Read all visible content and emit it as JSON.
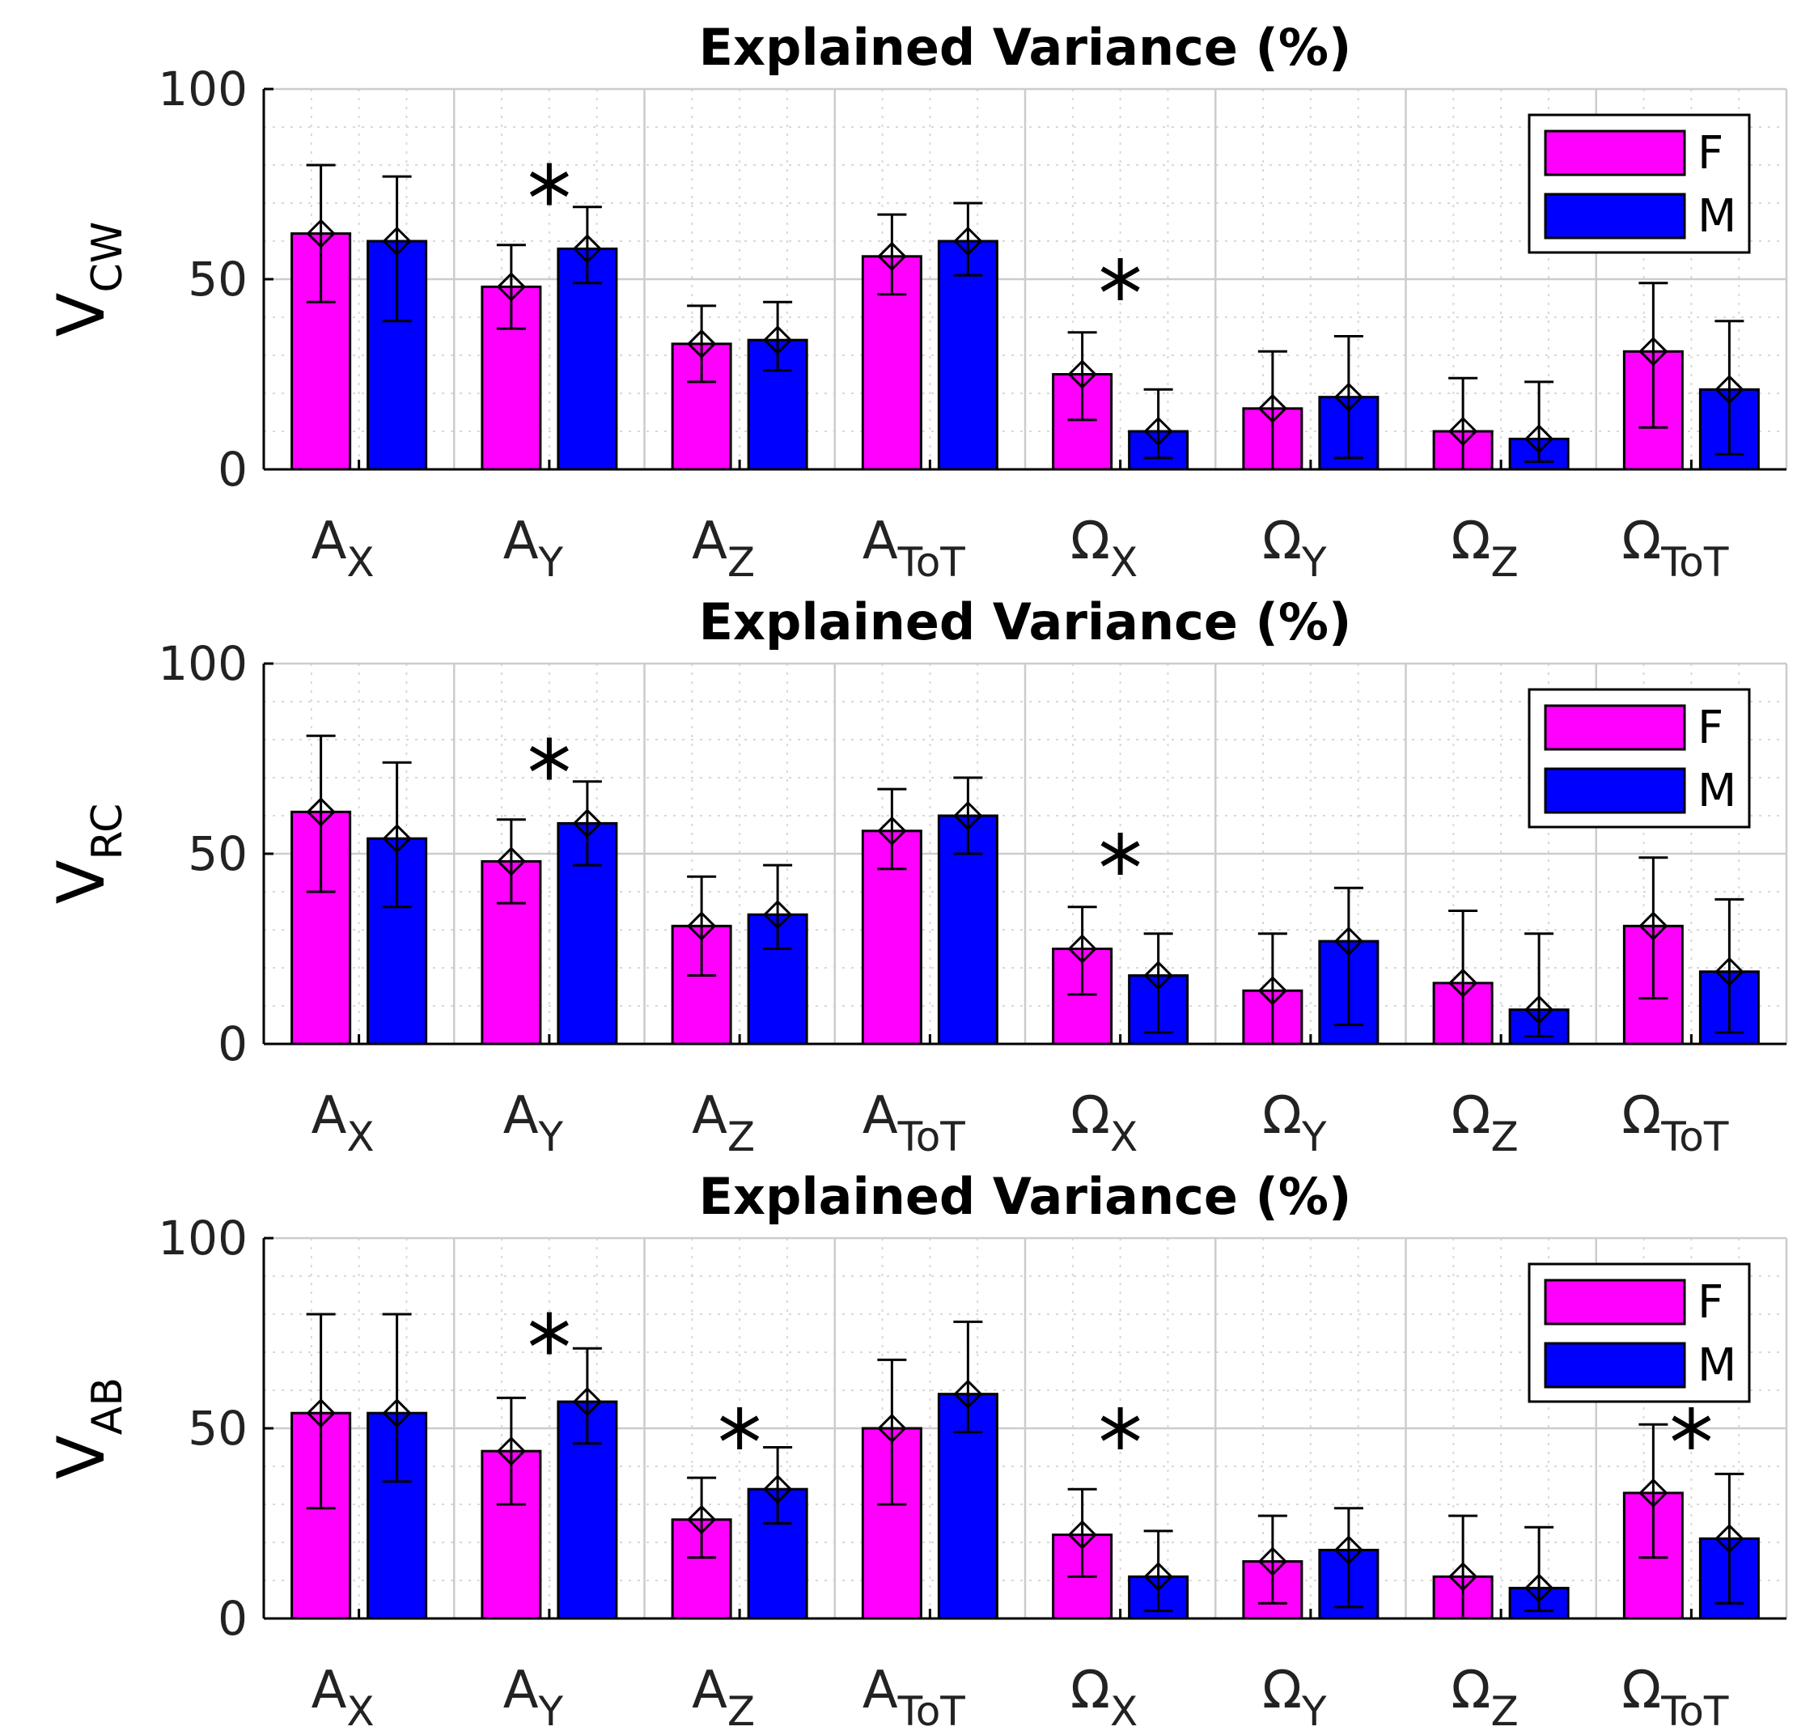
{
  "colors": {
    "F": "#ff00ff",
    "M": "#0000ff",
    "grid": "#cccccc",
    "axis": "#000000"
  },
  "chart_data": [
    {
      "type": "bar",
      "title": "Explained Variance (%)",
      "ylabel": {
        "main": "V",
        "sub": "CW"
      },
      "ylim": [
        0,
        100
      ],
      "yticks": [
        "0",
        "50",
        "100"
      ],
      "categories": [
        {
          "main": "A",
          "sub": "X"
        },
        {
          "main": "A",
          "sub": "Y"
        },
        {
          "main": "A",
          "sub": "Z"
        },
        {
          "main": "A",
          "sub": "ToT"
        },
        {
          "main": "Ω",
          "sub": "X"
        },
        {
          "main": "Ω",
          "sub": "Y"
        },
        {
          "main": "Ω",
          "sub": "Z"
        },
        {
          "main": "Ω",
          "sub": "ToT"
        }
      ],
      "legend": [
        "F",
        "M"
      ],
      "legend_position": "top-right",
      "series": [
        {
          "name": "F",
          "values": [
            62,
            48,
            33,
            56,
            25,
            16,
            10,
            31
          ],
          "err_low": [
            44,
            37,
            23,
            46,
            13,
            0,
            0,
            11
          ],
          "err_high": [
            80,
            59,
            43,
            67,
            36,
            31,
            24,
            49
          ]
        },
        {
          "name": "M",
          "values": [
            60,
            58,
            34,
            60,
            10,
            19,
            8,
            21
          ],
          "err_low": [
            39,
            49,
            26,
            51,
            3,
            3,
            2,
            4
          ],
          "err_high": [
            77,
            69,
            44,
            70,
            21,
            35,
            23,
            39
          ]
        }
      ],
      "significance": [
        "",
        "*",
        "",
        "",
        "*",
        "",
        "",
        ""
      ],
      "significance_y": [
        75,
        75,
        0,
        0,
        50,
        0,
        0,
        0
      ]
    },
    {
      "type": "bar",
      "title": "Explained Variance (%)",
      "ylabel": {
        "main": "V",
        "sub": "RC"
      },
      "ylim": [
        0,
        100
      ],
      "yticks": [
        "0",
        "50",
        "100"
      ],
      "categories": [
        {
          "main": "A",
          "sub": "X"
        },
        {
          "main": "A",
          "sub": "Y"
        },
        {
          "main": "A",
          "sub": "Z"
        },
        {
          "main": "A",
          "sub": "ToT"
        },
        {
          "main": "Ω",
          "sub": "X"
        },
        {
          "main": "Ω",
          "sub": "Y"
        },
        {
          "main": "Ω",
          "sub": "Z"
        },
        {
          "main": "Ω",
          "sub": "ToT"
        }
      ],
      "legend": [
        "F",
        "M"
      ],
      "legend_position": "top-right",
      "series": [
        {
          "name": "F",
          "values": [
            61,
            48,
            31,
            56,
            25,
            14,
            16,
            31
          ],
          "err_low": [
            40,
            37,
            18,
            46,
            13,
            0,
            0,
            12
          ],
          "err_high": [
            81,
            59,
            44,
            67,
            36,
            29,
            35,
            49
          ]
        },
        {
          "name": "M",
          "values": [
            54,
            58,
            34,
            60,
            18,
            27,
            9,
            19
          ],
          "err_low": [
            36,
            47,
            25,
            50,
            3,
            5,
            2,
            3
          ],
          "err_high": [
            74,
            69,
            47,
            70,
            29,
            41,
            29,
            38
          ]
        }
      ],
      "significance": [
        "",
        "*",
        "",
        "",
        "*",
        "",
        "",
        ""
      ],
      "significance_y": [
        75,
        75,
        0,
        0,
        50,
        0,
        0,
        0
      ]
    },
    {
      "type": "bar",
      "title": "Explained Variance (%)",
      "ylabel": {
        "main": "V",
        "sub": "AB"
      },
      "ylim": [
        0,
        100
      ],
      "yticks": [
        "0",
        "50",
        "100"
      ],
      "categories": [
        {
          "main": "A",
          "sub": "X"
        },
        {
          "main": "A",
          "sub": "Y"
        },
        {
          "main": "A",
          "sub": "Z"
        },
        {
          "main": "A",
          "sub": "ToT"
        },
        {
          "main": "Ω",
          "sub": "X"
        },
        {
          "main": "Ω",
          "sub": "Y"
        },
        {
          "main": "Ω",
          "sub": "Z"
        },
        {
          "main": "Ω",
          "sub": "ToT"
        }
      ],
      "legend": [
        "F",
        "M"
      ],
      "legend_position": "top-right",
      "series": [
        {
          "name": "F",
          "values": [
            54,
            44,
            26,
            50,
            22,
            15,
            11,
            33
          ],
          "err_low": [
            29,
            30,
            16,
            30,
            11,
            4,
            0,
            16
          ],
          "err_high": [
            80,
            58,
            37,
            68,
            34,
            27,
            27,
            51
          ]
        },
        {
          "name": "M",
          "values": [
            54,
            57,
            34,
            59,
            11,
            18,
            8,
            21
          ],
          "err_low": [
            36,
            46,
            25,
            49,
            2,
            3,
            2,
            4
          ],
          "err_high": [
            80,
            71,
            45,
            78,
            23,
            29,
            24,
            38
          ]
        }
      ],
      "significance": [
        "",
        "*",
        "*",
        "",
        "*",
        "",
        "",
        "*"
      ],
      "significance_y": [
        75,
        75,
        50,
        0,
        50,
        0,
        0,
        50
      ]
    }
  ]
}
